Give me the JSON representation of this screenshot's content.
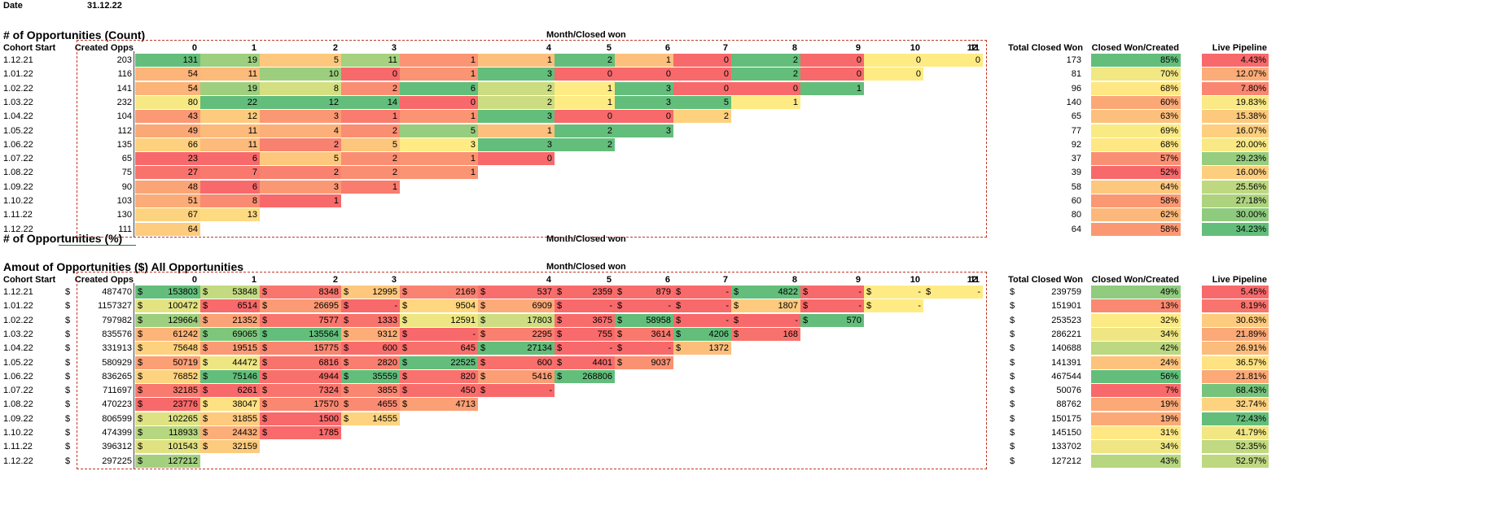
{
  "header": {
    "date_label": "Date",
    "date_value": "31.12.22"
  },
  "sections": {
    "count": {
      "title": "# of Opportunities (Count)",
      "month_header": "Month/Closed won",
      "cohort_header": "Cohort Start",
      "created_header": "Created Opps",
      "total_header": "Total Closed Won",
      "ratio_header": "Closed Won/Created",
      "pipeline_header": "Live Pipeline",
      "months": [
        "0",
        "1",
        "2",
        "3",
        "4",
        "5",
        "6",
        "7",
        "8",
        "9",
        "10",
        "11",
        "12"
      ],
      "cohorts": [
        "1.12.21",
        "1.01.22",
        "1.02.22",
        "1.03.22",
        "1.04.22",
        "1.05.22",
        "1.06.22",
        "1.07.22",
        "1.08.22",
        "1.09.22",
        "1.10.22",
        "1.11.22",
        "1.12.22"
      ],
      "created": [
        "203",
        "116",
        "141",
        "232",
        "104",
        "112",
        "135",
        "65",
        "75",
        "90",
        "103",
        "130",
        "111"
      ],
      "cells": [
        [
          "131",
          "19",
          "5",
          "11",
          "1",
          "1",
          "2",
          "1",
          "0",
          "2",
          "0",
          "0",
          "0"
        ],
        [
          "54",
          "11",
          "10",
          "0",
          "1",
          "3",
          "0",
          "0",
          "0",
          "2",
          "0",
          "0"
        ],
        [
          "54",
          "19",
          "8",
          "2",
          "6",
          "2",
          "1",
          "3",
          "0",
          "0",
          "1"
        ],
        [
          "80",
          "22",
          "12",
          "14",
          "0",
          "2",
          "1",
          "3",
          "5",
          "1"
        ],
        [
          "43",
          "12",
          "3",
          "1",
          "1",
          "3",
          "0",
          "0",
          "2"
        ],
        [
          "49",
          "11",
          "4",
          "2",
          "5",
          "1",
          "2",
          "3"
        ],
        [
          "66",
          "11",
          "2",
          "5",
          "3",
          "3",
          "2"
        ],
        [
          "23",
          "6",
          "5",
          "2",
          "1",
          "0"
        ],
        [
          "27",
          "7",
          "2",
          "2",
          "1"
        ],
        [
          "48",
          "6",
          "3",
          "1"
        ],
        [
          "51",
          "8",
          "1"
        ],
        [
          "67",
          "13"
        ],
        [
          "64"
        ]
      ],
      "total": [
        "173",
        "81",
        "96",
        "140",
        "65",
        "77",
        "92",
        "37",
        "39",
        "58",
        "60",
        "80",
        "64"
      ],
      "ratio": [
        "85%",
        "70%",
        "68%",
        "60%",
        "63%",
        "69%",
        "68%",
        "57%",
        "52%",
        "64%",
        "58%",
        "62%",
        "58%"
      ],
      "pipeline": [
        "4.43%",
        "12.07%",
        "7.80%",
        "19.83%",
        "15.38%",
        "16.07%",
        "20.00%",
        "29.23%",
        "16.00%",
        "25.56%",
        "27.18%",
        "30.00%",
        "34.23%"
      ]
    },
    "percent": {
      "title": "# of Opportunities (%)",
      "month_header": "Month/Closed won"
    },
    "amount": {
      "title": "Amout of Opportunities ($) All Opportunities",
      "month_header": "Month/Closed won",
      "cohort_header": "Cohort Start",
      "created_header": "Created Opps",
      "total_header": "Total Closed Won",
      "ratio_header": "Closed Won/Created",
      "pipeline_header": "Live Pipeline",
      "currency": "$",
      "months": [
        "0",
        "1",
        "2",
        "3",
        "4",
        "5",
        "6",
        "7",
        "8",
        "9",
        "10",
        "11",
        "12"
      ],
      "cohorts": [
        "1.12.21",
        "1.01.22",
        "1.02.22",
        "1.03.22",
        "1.04.22",
        "1.05.22",
        "1.06.22",
        "1.07.22",
        "1.08.22",
        "1.09.22",
        "1.10.22",
        "1.11.22",
        "1.12.22"
      ],
      "created": [
        "487470",
        "1157327",
        "797982",
        "835576",
        "331913",
        "580929",
        "836265",
        "711697",
        "470223",
        "806599",
        "474399",
        "396312",
        "297225"
      ],
      "cells": [
        [
          "153803",
          "53848",
          "8348",
          "12995",
          "2169",
          "537",
          "2359",
          "879",
          "-",
          "4822",
          "-",
          "-",
          "-"
        ],
        [
          "100472",
          "6514",
          "26695",
          "-",
          "9504",
          "6909",
          "-",
          "-",
          "-",
          "1807",
          "-",
          "-"
        ],
        [
          "129664",
          "21352",
          "7577",
          "1333",
          "12591",
          "17803",
          "3675",
          "58958",
          "-",
          "-",
          "570"
        ],
        [
          "61242",
          "69065",
          "135564",
          "9312",
          "-",
          "2295",
          "755",
          "3614",
          "4206",
          "168"
        ],
        [
          "75648",
          "19515",
          "15775",
          "600",
          "645",
          "27134",
          "-",
          "-",
          "1372"
        ],
        [
          "50719",
          "44472",
          "6816",
          "2820",
          "22525",
          "600",
          "4401",
          "9037"
        ],
        [
          "76852",
          "75146",
          "4944",
          "35559",
          "820",
          "5416",
          "268806"
        ],
        [
          "32185",
          "6261",
          "7324",
          "3855",
          "450",
          "-"
        ],
        [
          "23776",
          "38047",
          "17570",
          "4655",
          "4713"
        ],
        [
          "102265",
          "31855",
          "1500",
          "14555"
        ],
        [
          "118933",
          "24432",
          "1785"
        ],
        [
          "101543",
          "32159"
        ],
        [
          "127212"
        ]
      ],
      "total": [
        "239759",
        "151901",
        "253523",
        "286221",
        "140688",
        "141391",
        "467544",
        "50076",
        "88762",
        "150175",
        "145150",
        "133702",
        "127212"
      ],
      "ratio": [
        "49%",
        "13%",
        "32%",
        "34%",
        "42%",
        "24%",
        "56%",
        "7%",
        "19%",
        "19%",
        "31%",
        "34%",
        "43%"
      ],
      "pipeline": [
        "5.45%",
        "8.19%",
        "30.63%",
        "21.89%",
        "26.91%",
        "36.57%",
        "21.81%",
        "68.43%",
        "32.74%",
        "72.43%",
        "41.79%",
        "52.35%",
        "52.97%"
      ]
    }
  },
  "colors": {
    "green": "#63be7b",
    "yellow": "#ffeb84",
    "red": "#f8696b",
    "dashed_border": "#c0392b"
  }
}
